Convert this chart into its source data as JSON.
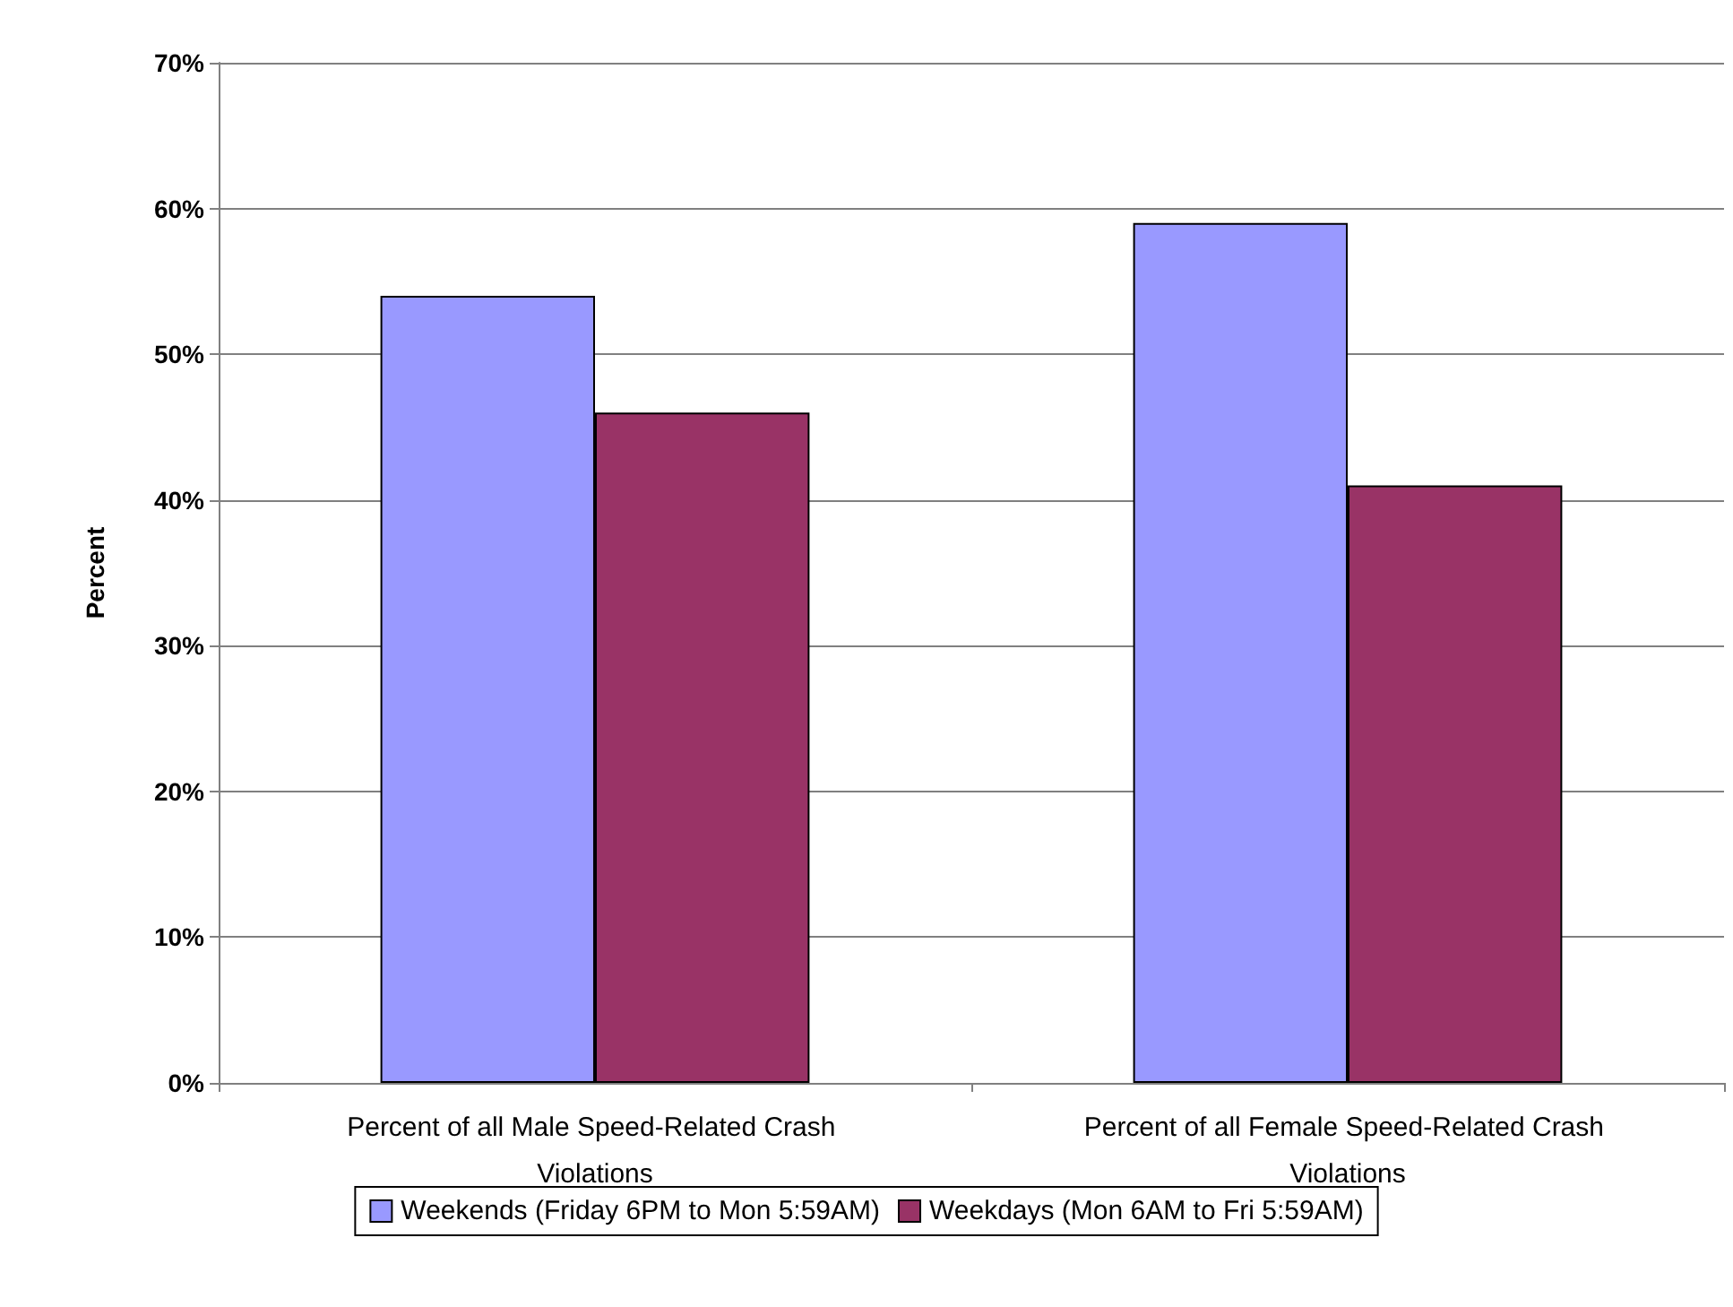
{
  "chart_data": {
    "type": "bar",
    "ylabel": "Percent",
    "categories": [
      "Percent of all Male Speed-Related Crash Violations",
      "Percent of all Female Speed-Related Crash Violations"
    ],
    "series": [
      {
        "name": "Weekends (Friday 6PM to Mon 5:59AM)",
        "color": "#9999ff",
        "values": [
          54,
          59
        ]
      },
      {
        "name": "Weekdays (Mon 6AM to Fri 5:59AM)",
        "color": "#993366",
        "values": [
          46,
          41
        ]
      }
    ],
    "ylim": [
      0,
      70
    ],
    "yticks": [
      {
        "value": 0,
        "label": "0%"
      },
      {
        "value": 10,
        "label": "10%"
      },
      {
        "value": 20,
        "label": "20%"
      },
      {
        "value": 30,
        "label": "30%"
      },
      {
        "value": 40,
        "label": "40%"
      },
      {
        "value": 50,
        "label": "50%"
      },
      {
        "value": 60,
        "label": "60%"
      },
      {
        "value": 70,
        "label": "70%"
      }
    ],
    "grid": "y",
    "legend": "bottom"
  }
}
